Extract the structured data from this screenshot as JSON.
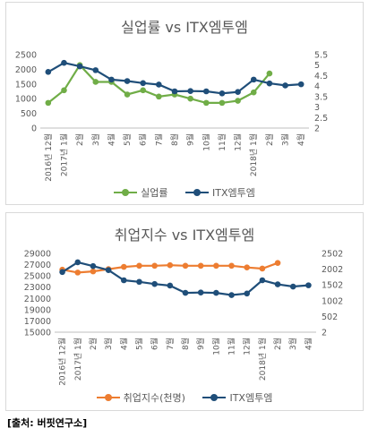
{
  "source_note": "[출처: 버핏연구소]",
  "months": [
    "12월",
    "1월",
    "2월",
    "3월",
    "4월",
    "5월",
    "6월",
    "7월",
    "8월",
    "9월",
    "10월",
    "11월",
    "12월",
    "1월",
    "2월",
    "3월",
    "4월"
  ],
  "year_labels": [
    {
      "index": 0,
      "text": "2016년"
    },
    {
      "index": 1,
      "text": "2017년"
    },
    {
      "index": 13,
      "text": "2018년"
    }
  ],
  "chart_data": [
    {
      "type": "line",
      "title": "실업률 vs ITX엠투엠",
      "yticks_left": [
        "0",
        "500",
        "1000",
        "1500",
        "2000",
        "2500"
      ],
      "ylim_left": [
        0,
        2500
      ],
      "yticks_right": [
        "2",
        "2.5",
        "3",
        "3.5",
        "4",
        "4.5",
        "5",
        "5.5"
      ],
      "ylim_right": [
        2,
        5.5
      ],
      "legend_position": "bottom",
      "series": [
        {
          "name": "실업률",
          "axis": "left",
          "color": "#70ad47",
          "values": [
            3.2,
            3.8,
            5.0,
            4.2,
            4.2,
            3.6,
            3.8,
            3.5,
            3.6,
            3.4,
            3.2,
            3.2,
            3.3,
            3.7,
            4.6
          ]
        },
        {
          "name": "ITX엠투엠",
          "axis": "left",
          "color": "#1f4e79",
          "values": [
            1910,
            2220,
            2100,
            1970,
            1650,
            1600,
            1530,
            1480,
            1250,
            1260,
            1250,
            1180,
            1230,
            1650,
            1520,
            1450,
            1490
          ]
        }
      ]
    },
    {
      "type": "line",
      "title": "취업지수 vs ITX엠투엠",
      "yticks_left": [
        "15000",
        "17000",
        "19000",
        "21000",
        "23000",
        "25000",
        "27000",
        "29000"
      ],
      "ylim_left": [
        15000,
        29000
      ],
      "yticks_right": [
        "2",
        "502",
        "1002",
        "1502",
        "2002",
        "2502"
      ],
      "ylim_right": [
        2,
        2502
      ],
      "legend_position": "bottom",
      "series": [
        {
          "name": "취업지수(천명)",
          "axis": "left",
          "color": "#ed7d31",
          "values": [
            26100,
            25600,
            25800,
            26200,
            26600,
            26800,
            26800,
            26900,
            26800,
            26800,
            26800,
            26800,
            26500,
            26300,
            27300
          ]
        },
        {
          "name": "ITX엠투엠",
          "axis": "right",
          "color": "#1f4e79",
          "values": [
            1910,
            2220,
            2100,
            1970,
            1650,
            1600,
            1530,
            1480,
            1250,
            1260,
            1250,
            1180,
            1230,
            1650,
            1520,
            1450,
            1490
          ]
        }
      ]
    }
  ]
}
